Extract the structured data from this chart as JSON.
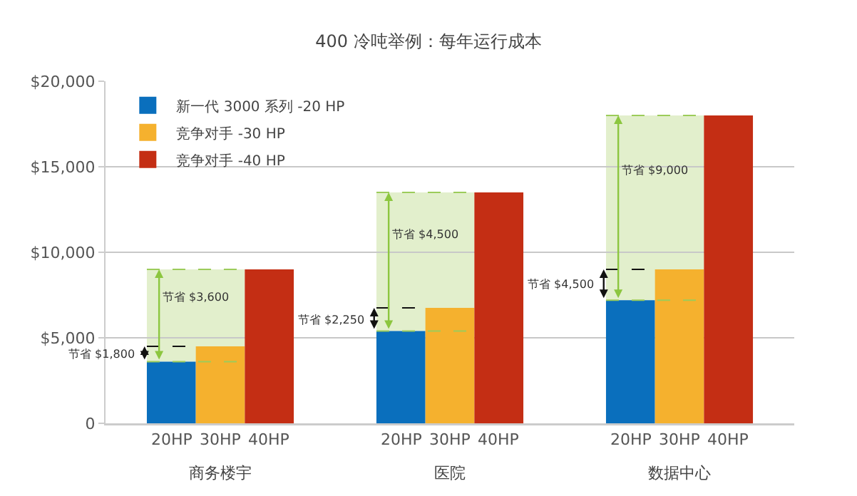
{
  "chart_data": {
    "type": "bar",
    "title": "400 冷吨举例：每年运行成本",
    "categories": [
      "商务楼宇",
      "医院",
      "数据中心"
    ],
    "series": [
      {
        "name": "新一代 3000 系列 -20 HP",
        "color": "#0a6fbd",
        "values": [
          3600,
          5400,
          7200
        ]
      },
      {
        "name": "竞争对手 -30 HP",
        "color": "#f5b12e",
        "values": [
          4500,
          6750,
          9000
        ]
      },
      {
        "name": "竞争对手 -40 HP",
        "color": "#c42e14",
        "values": [
          9000,
          13500,
          18000
        ]
      }
    ],
    "ylim": [
      0,
      20000
    ],
    "yticks": [
      0,
      {
        "value": 5000,
        "label": "$5,000"
      },
      {
        "value": 10000,
        "label": "$10,000"
      },
      {
        "value": 15000,
        "label": "$15,000"
      },
      {
        "value": 20000,
        "label": "$20,000"
      }
    ],
    "grid": "y",
    "legend": "top left",
    "annotations": [
      {
        "text": "20HP",
        "x": "商务楼宇",
        "y": 0
      },
      {
        "text": "30HP",
        "x": "商务楼宇",
        "y": 0
      },
      {
        "text": "40HP",
        "x": "商务楼宇",
        "y": 0
      },
      "节省 $1,800",
      "节省 $3,600",
      {
        "text": "20HP",
        "x": "医院",
        "y": 0
      },
      {
        "text": "30HP",
        "x": "医院",
        "y": 0
      },
      {
        "text": "40HP",
        "x": "医院",
        "y": 0
      },
      "节省 $2,250",
      "节省 $4,500",
      {
        "text": "20HP",
        "x": "数据中心",
        "y": 0
      },
      {
        "text": "30HP",
        "x": "数据中心",
        "y": 0
      },
      {
        "text": "40HP",
        "x": "数据中心",
        "y": 0
      },
      "节省 $4,500",
      "节省 $9,000"
    ]
  }
}
